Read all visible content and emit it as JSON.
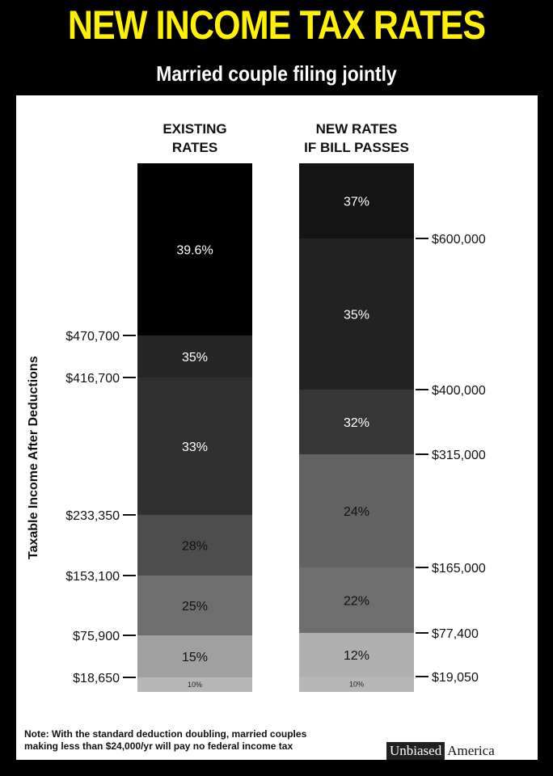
{
  "title": "NEW INCOME TAX RATES",
  "subtitle": "Married couple filing jointly",
  "colors": {
    "title": "#fff200",
    "background": "#000000",
    "panel": "#ffffff"
  },
  "chart_data": {
    "type": "bar",
    "ylabel": "Taxable Income After Deductions",
    "columns": [
      {
        "name": "existing",
        "header_line1": "EXISTING",
        "header_line2": "RATES",
        "brackets": [
          {
            "rate": "10%",
            "color": "#b7b7b7",
            "text_color": "#222222"
          },
          {
            "rate": "15%",
            "color": "#a0a0a0",
            "text_color": "#111111"
          },
          {
            "rate": "25%",
            "color": "#6e6e6e",
            "text_color": "#111111"
          },
          {
            "rate": "28%",
            "color": "#4d4d4d",
            "text_color": "#111111"
          },
          {
            "rate": "33%",
            "color": "#303030",
            "text_color": "#ffffff"
          },
          {
            "rate": "35%",
            "color": "#262626",
            "text_color": "#ffffff"
          },
          {
            "rate": "39.6%",
            "color": "#000000",
            "text_color": "#ffffff"
          }
        ],
        "thresholds": [
          "$18,650",
          "$75,900",
          "$153,100",
          "$233,350",
          "$416,700",
          "$470,700"
        ]
      },
      {
        "name": "new",
        "header_line1": "NEW RATES",
        "header_line2": "IF BILL PASSES",
        "brackets": [
          {
            "rate": "10%",
            "color": "#b7b7b7",
            "text_color": "#222222"
          },
          {
            "rate": "12%",
            "color": "#b0b0b0",
            "text_color": "#111111"
          },
          {
            "rate": "22%",
            "color": "#6e6e6e",
            "text_color": "#111111"
          },
          {
            "rate": "24%",
            "color": "#626262",
            "text_color": "#111111"
          },
          {
            "rate": "32%",
            "color": "#363636",
            "text_color": "#ffffff"
          },
          {
            "rate": "35%",
            "color": "#222222",
            "text_color": "#ffffff"
          },
          {
            "rate": "37%",
            "color": "#141414",
            "text_color": "#ffffff"
          }
        ],
        "thresholds": [
          "$19,050",
          "$77,400",
          "$165,000",
          "$315,000",
          "$400,000",
          "$600,000"
        ]
      }
    ]
  },
  "note_line1": "Note: With the standard deduction doubling, married couples",
  "note_line2": "making less than $24,000/yr will pay no federal income tax",
  "brand_part1": "Unbiased",
  "brand_part2": "America"
}
